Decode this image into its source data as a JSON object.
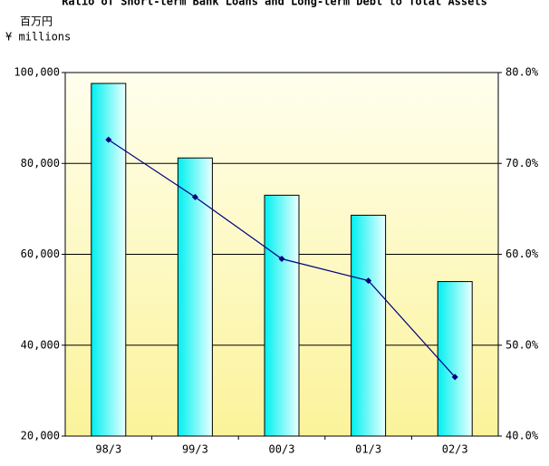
{
  "chart_data": {
    "type": "bar",
    "title": "Ratio of Short-term Bank Loans and Long-term Debt to Total Assets",
    "ylabel_lines": [
      "百万円",
      "¥ millions"
    ],
    "categories": [
      "98/3",
      "99/3",
      "00/3",
      "01/3",
      "02/3"
    ],
    "series": [
      {
        "type": "bar",
        "color": "#00ffff",
        "values": [
          97600,
          81200,
          73000,
          68600,
          54000
        ]
      },
      {
        "type": "line",
        "axis": "y2",
        "color": "#000080",
        "values": [
          72.6,
          66.3,
          59.5,
          57.1,
          46.5
        ]
      }
    ],
    "ylim": [
      20000,
      100000
    ],
    "yticks": [
      {
        "value": 20000,
        "label": "20,000"
      },
      {
        "value": 40000,
        "label": "40,000"
      },
      {
        "value": 60000,
        "label": "60,000"
      },
      {
        "value": 80000,
        "label": "80,000"
      },
      {
        "value": 100000,
        "label": "100,000"
      }
    ],
    "y2lim": [
      40,
      80
    ],
    "y2ticks": [
      {
        "value": 40,
        "label": "40.0%"
      },
      {
        "value": 50,
        "label": "50.0%"
      },
      {
        "value": 60,
        "label": "60.0%"
      },
      {
        "value": 70,
        "label": "70.0%"
      },
      {
        "value": 80,
        "label": "80.0%"
      }
    ],
    "grid": true
  }
}
